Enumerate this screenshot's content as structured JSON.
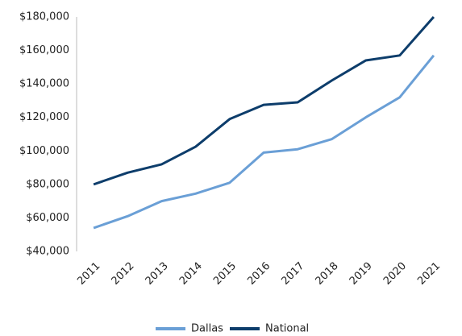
{
  "chart_data": {
    "type": "line",
    "categories": [
      "2011",
      "2012",
      "2013",
      "2014",
      "2015",
      "2016",
      "2017",
      "2018",
      "2019",
      "2020",
      "2021"
    ],
    "series": [
      {
        "name": "Dallas",
        "color": "#6a9fd6",
        "values": [
          54000,
          61000,
          70000,
          74500,
          81000,
          99000,
          101000,
          107000,
          120000,
          132000,
          157000
        ]
      },
      {
        "name": "National",
        "color": "#0d3d6b",
        "values": [
          80000,
          87000,
          92000,
          102500,
          119000,
          127500,
          129000,
          142000,
          154000,
          157000,
          180000
        ]
      }
    ],
    "ylim": [
      40000,
      180000
    ],
    "yticks": [
      {
        "value": 40000,
        "label": "$40,000"
      },
      {
        "value": 60000,
        "label": "$60,000"
      },
      {
        "value": 80000,
        "label": "$80,000"
      },
      {
        "value": 100000,
        "label": "$100,000"
      },
      {
        "value": 120000,
        "label": "$120,000"
      },
      {
        "value": 140000,
        "label": "$140,000"
      },
      {
        "value": 160000,
        "label": "$160,000"
      },
      {
        "value": 180000,
        "label": "$180,000"
      }
    ],
    "grid": false,
    "legend": "bottom"
  }
}
